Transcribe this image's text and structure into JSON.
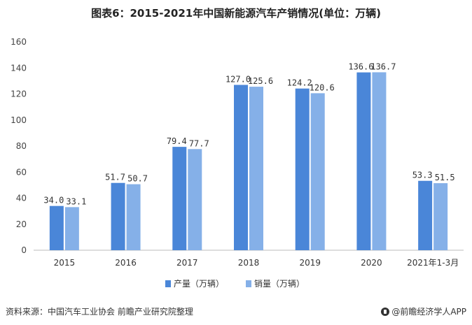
{
  "title": "图表6：2015-2021年中国新能源汽车产销情况(单位：万辆)",
  "source": "资料来源：中国汽车工业协会 前瞻产业研究院整理",
  "brand": "@前瞻经济学人APP",
  "colors": {
    "production": "#4a86d8",
    "sales": "#85b0e8"
  },
  "chart_data": {
    "type": "bar",
    "title": "图表6：2015-2021年中国新能源汽车产销情况(单位：万辆)",
    "categories": [
      "2015",
      "2016",
      "2017",
      "2018",
      "2019",
      "2020",
      "2021年1-3月"
    ],
    "series": [
      {
        "name": "产量（万辆）",
        "values": [
          34.0,
          51.7,
          79.4,
          127.0,
          124.2,
          136.6,
          53.3
        ]
      },
      {
        "name": "销量（万辆）",
        "values": [
          33.1,
          50.7,
          77.7,
          125.6,
          120.6,
          136.7,
          51.5
        ]
      }
    ],
    "yticks": [
      0,
      20,
      40,
      60,
      80,
      100,
      120,
      140,
      160
    ],
    "ylim": [
      0,
      160
    ],
    "xlabel": "",
    "ylabel": "",
    "legend_position": "bottom-center",
    "grid": false
  }
}
